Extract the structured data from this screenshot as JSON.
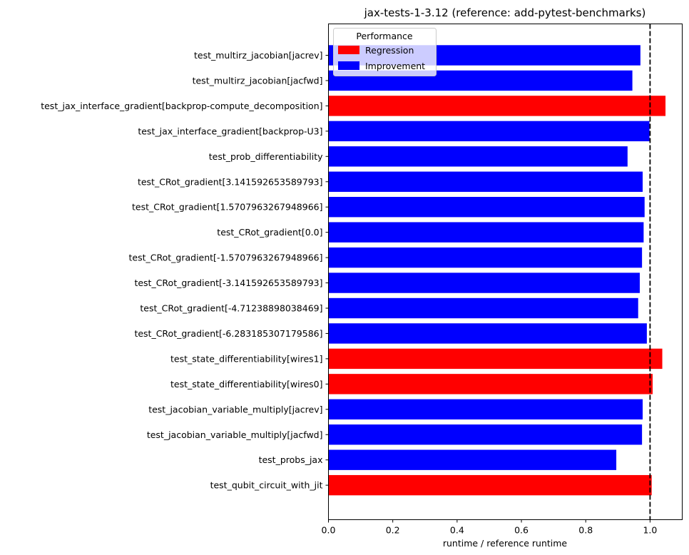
{
  "chart_data": {
    "type": "bar",
    "orientation": "horizontal",
    "title": "jax-tests-1-3.12 (reference: add-pytest-benchmarks)",
    "xlabel": "runtime / reference runtime",
    "ylabel": "",
    "xlim": [
      0,
      1.1
    ],
    "xticks": [
      0.0,
      0.2,
      0.4,
      0.6,
      0.8,
      1.0
    ],
    "xtick_labels": [
      "0.0",
      "0.2",
      "0.4",
      "0.6",
      "0.8",
      "1.0"
    ],
    "reference_line": 1.0,
    "grid": false,
    "legend": {
      "title": "Performance",
      "placement": "top-left",
      "entries": [
        {
          "label": "Regression",
          "color": "#ff0000"
        },
        {
          "label": "Improvement",
          "color": "#0000ff"
        }
      ]
    },
    "categories": [
      "test_multirz_jacobian[jacrev]",
      "test_multirz_jacobian[jacfwd]",
      "test_jax_interface_gradient[backprop-compute_decomposition]",
      "test_jax_interface_gradient[backprop-U3]",
      "test_prob_differentiability",
      "test_CRot_gradient[3.141592653589793]",
      "test_CRot_gradient[1.5707963267948966]",
      "test_CRot_gradient[0.0]",
      "test_CRot_gradient[-1.5707963267948966]",
      "test_CRot_gradient[-3.141592653589793]",
      "test_CRot_gradient[-4.71238898038469]",
      "test_CRot_gradient[-6.283185307179586]",
      "test_state_differentiability[wires1]",
      "test_state_differentiability[wires0]",
      "test_jacobian_variable_multiply[jacrev]",
      "test_jacobian_variable_multiply[jacfwd]",
      "test_probs_jax",
      "test_qubit_circuit_with_jit"
    ],
    "values": [
      0.97,
      0.945,
      1.048,
      0.998,
      0.93,
      0.977,
      0.983,
      0.98,
      0.975,
      0.968,
      0.963,
      0.99,
      1.038,
      1.008,
      0.977,
      0.975,
      0.895,
      1.005
    ],
    "status": [
      "Improvement",
      "Improvement",
      "Regression",
      "Improvement",
      "Improvement",
      "Improvement",
      "Improvement",
      "Improvement",
      "Improvement",
      "Improvement",
      "Improvement",
      "Improvement",
      "Regression",
      "Regression",
      "Improvement",
      "Improvement",
      "Improvement",
      "Regression"
    ]
  }
}
